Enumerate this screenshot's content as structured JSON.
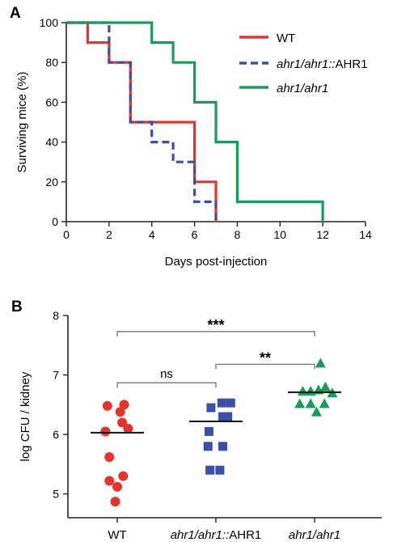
{
  "panels": {
    "a_label": "A",
    "b_label": "B"
  },
  "chart_data": [
    {
      "type": "line",
      "step": true,
      "title": "",
      "xlabel": "Days post-injection",
      "ylabel": "Surviving mice (%)",
      "xlim": [
        0,
        14
      ],
      "ylim": [
        0,
        100
      ],
      "xticks": [
        0,
        2,
        4,
        6,
        8,
        10,
        12,
        14
      ],
      "yticks": [
        0,
        20,
        40,
        60,
        80,
        100
      ],
      "grid": false,
      "legend_position": "top-right",
      "series": [
        {
          "name": "WT",
          "italic_part": "",
          "color": "#e8322d",
          "dash": "solid",
          "points": [
            [
              0,
              100
            ],
            [
              1,
              100
            ],
            [
              1,
              90
            ],
            [
              2,
              90
            ],
            [
              2,
              80
            ],
            [
              3,
              80
            ],
            [
              3,
              50
            ],
            [
              6,
              50
            ],
            [
              6,
              20
            ],
            [
              7,
              20
            ],
            [
              7,
              0
            ]
          ]
        },
        {
          "name": "ahr1/ahr1::AHR1",
          "italic_part": "ahr1/ahr1::",
          "upright_part": "AHR1",
          "color": "#3b4fa8",
          "dash": "dashed",
          "points": [
            [
              0,
              100
            ],
            [
              2,
              100
            ],
            [
              2,
              80
            ],
            [
              3,
              80
            ],
            [
              3,
              50
            ],
            [
              4,
              50
            ],
            [
              4,
              40
            ],
            [
              5,
              40
            ],
            [
              5,
              30
            ],
            [
              6,
              30
            ],
            [
              6,
              10
            ],
            [
              7,
              10
            ],
            [
              7,
              0
            ]
          ]
        },
        {
          "name": "ahr1/ahr1",
          "italic_part": "ahr1/ahr1",
          "upright_part": "",
          "color": "#169d5a",
          "dash": "solid",
          "points": [
            [
              0,
              100
            ],
            [
              4,
              100
            ],
            [
              4,
              90
            ],
            [
              5,
              90
            ],
            [
              5,
              80
            ],
            [
              6,
              80
            ],
            [
              6,
              60
            ],
            [
              7,
              60
            ],
            [
              7,
              40
            ],
            [
              8,
              40
            ],
            [
              8,
              10
            ],
            [
              12,
              10
            ],
            [
              12,
              0
            ]
          ]
        }
      ]
    },
    {
      "type": "scatter",
      "title": "",
      "xlabel": "",
      "ylabel": "log CFU / kidney",
      "ylim": [
        4.6,
        8
      ],
      "yticks": [
        5,
        6,
        7,
        8
      ],
      "grid": false,
      "categories": [
        {
          "label": "WT",
          "italic_part": "",
          "upright_part": "WT"
        },
        {
          "label": "ahr1/ahr1::AHR1",
          "italic_part": "ahr1/ahr1::",
          "upright_part": "AHR1"
        },
        {
          "label": "ahr1/ahr1",
          "italic_part": "ahr1/ahr1",
          "upright_part": ""
        }
      ],
      "series": [
        {
          "category": "WT",
          "marker": "circle",
          "color": "#e8322d",
          "mean": 6.03,
          "points": [
            [
              -0.1,
              6.48
            ],
            [
              0.07,
              6.5
            ],
            [
              0.03,
              6.38
            ],
            [
              0.05,
              6.2
            ],
            [
              -0.12,
              6.05
            ],
            [
              0.11,
              6.1
            ],
            [
              -0.08,
              5.62
            ],
            [
              -0.08,
              5.22
            ],
            [
              0.06,
              5.3
            ],
            [
              0.0,
              5.12
            ],
            [
              -0.02,
              4.87
            ]
          ]
        },
        {
          "category": "ahr1/ahr1::AHR1",
          "marker": "square",
          "color": "#3b4fa8",
          "mean": 6.22,
          "points": [
            [
              0.06,
              6.53
            ],
            [
              0.15,
              6.53
            ],
            [
              -0.05,
              6.45
            ],
            [
              0.07,
              6.3
            ],
            [
              0.12,
              6.3
            ],
            [
              -0.07,
              6.05
            ],
            [
              -0.08,
              5.8
            ],
            [
              0.07,
              5.8
            ],
            [
              -0.06,
              5.4
            ],
            [
              0.04,
              5.4
            ]
          ]
        },
        {
          "category": "ahr1/ahr1",
          "marker": "triangle",
          "color": "#169d5a",
          "mean": 6.71,
          "points": [
            [
              0.06,
              7.2
            ],
            [
              -0.12,
              6.73
            ],
            [
              -0.04,
              6.73
            ],
            [
              0.04,
              6.75
            ],
            [
              0.11,
              6.8
            ],
            [
              0.18,
              6.7
            ],
            [
              -0.15,
              6.52
            ],
            [
              -0.04,
              6.52
            ],
            [
              0.1,
              6.52
            ],
            [
              0.02,
              6.38
            ]
          ]
        }
      ],
      "annotations": [
        {
          "from": 0,
          "to": 2,
          "text": "***",
          "y": 7.73
        },
        {
          "from": 0,
          "to": 1,
          "text": "ns",
          "y": 6.87
        },
        {
          "from": 1,
          "to": 2,
          "text": "**",
          "y": 7.18
        }
      ]
    }
  ]
}
